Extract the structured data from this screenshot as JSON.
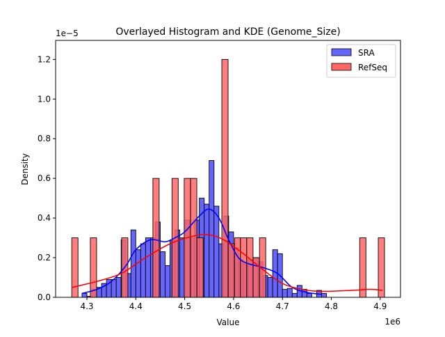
{
  "chart_data": {
    "type": "bar",
    "title": "Overlayed Histogram and KDE (Genome_Size)",
    "xlabel": "Value",
    "ylabel": "Density",
    "x_offset_label": "1e6",
    "y_offset_label": "1e−5",
    "xlim": [
      4.236,
      4.9415
    ],
    "ylim": [
      0,
      1.296
    ],
    "xticks": [
      "4.3",
      "4.4",
      "4.5",
      "4.6",
      "4.7",
      "4.8",
      "4.9"
    ],
    "yticks": [
      "0.0",
      "0.2",
      "0.4",
      "0.6",
      "0.8",
      "1.0",
      "1.2"
    ],
    "grid": false,
    "legend_position": "top-right",
    "series": [
      {
        "name": "SRA",
        "color": "#0000ff",
        "fill": "#6666ff",
        "bin_width": 0.01,
        "bin_left_edges": [
          4.29,
          4.3,
          4.31,
          4.32,
          4.33,
          4.34,
          4.35,
          4.36,
          4.37,
          4.38,
          4.39,
          4.4,
          4.41,
          4.42,
          4.43,
          4.44,
          4.45,
          4.46,
          4.47,
          4.48,
          4.49,
          4.5,
          4.51,
          4.52,
          4.53,
          4.54,
          4.55,
          4.56,
          4.57,
          4.58,
          4.59,
          4.6,
          4.61,
          4.62,
          4.63,
          4.64,
          4.65,
          4.66,
          4.67,
          4.68,
          4.69,
          4.7,
          4.71,
          4.72,
          4.73,
          4.74,
          4.75,
          4.76,
          4.77,
          4.78
        ],
        "values": [
          0.02,
          0.005,
          0.04,
          0.05,
          0.07,
          0.09,
          0.09,
          0.1,
          0.29,
          0.12,
          0.34,
          0.24,
          0.27,
          0.3,
          0.3,
          0.38,
          0.23,
          0.16,
          0.29,
          0.34,
          0.3,
          0.39,
          0.3,
          0.39,
          0.5,
          0.47,
          0.69,
          0.46,
          0.27,
          0.41,
          0.33,
          0.25,
          0.19,
          0.17,
          0.19,
          0.2,
          0.18,
          0.11,
          0.1,
          0.24,
          0.22,
          0.04,
          0.045,
          0.02,
          0.06,
          0.04,
          0.02,
          0.0,
          0.035,
          0.02
        ],
        "kde_x": [
          4.29,
          4.32,
          4.35,
          4.38,
          4.4,
          4.43,
          4.46,
          4.48,
          4.5,
          4.53,
          4.55,
          4.57,
          4.59,
          4.61,
          4.63,
          4.66,
          4.69,
          4.72,
          4.75,
          4.78
        ],
        "kde_y": [
          0.02,
          0.04,
          0.08,
          0.16,
          0.24,
          0.29,
          0.28,
          0.3,
          0.33,
          0.41,
          0.445,
          0.4,
          0.29,
          0.2,
          0.17,
          0.15,
          0.12,
          0.05,
          0.025,
          0.015
        ]
      },
      {
        "name": "RefSeq",
        "color": "#ff0000",
        "fill": "#ff6666",
        "bin_width": 0.0128,
        "bin_left_edges": [
          4.269,
          4.307,
          4.371,
          4.435,
          4.474,
          4.499,
          4.512,
          4.525,
          4.576,
          4.589,
          4.602,
          4.614,
          4.627,
          4.64,
          4.653,
          4.858,
          4.896
        ],
        "values": [
          0.3,
          0.3,
          0.3,
          0.6,
          0.6,
          0.6,
          0.6,
          0.3,
          1.2,
          0.27,
          0.3,
          0.3,
          0.3,
          0.2,
          0.3,
          0.3,
          0.3
        ],
        "kde_x": [
          4.27,
          4.32,
          4.37,
          4.42,
          4.47,
          4.52,
          4.55,
          4.58,
          4.62,
          4.66,
          4.7,
          4.74,
          4.78,
          4.84,
          4.88,
          4.905
        ],
        "kde_y": [
          0.05,
          0.08,
          0.12,
          0.2,
          0.27,
          0.31,
          0.315,
          0.29,
          0.22,
          0.14,
          0.07,
          0.04,
          0.03,
          0.035,
          0.04,
          0.035
        ]
      }
    ]
  }
}
